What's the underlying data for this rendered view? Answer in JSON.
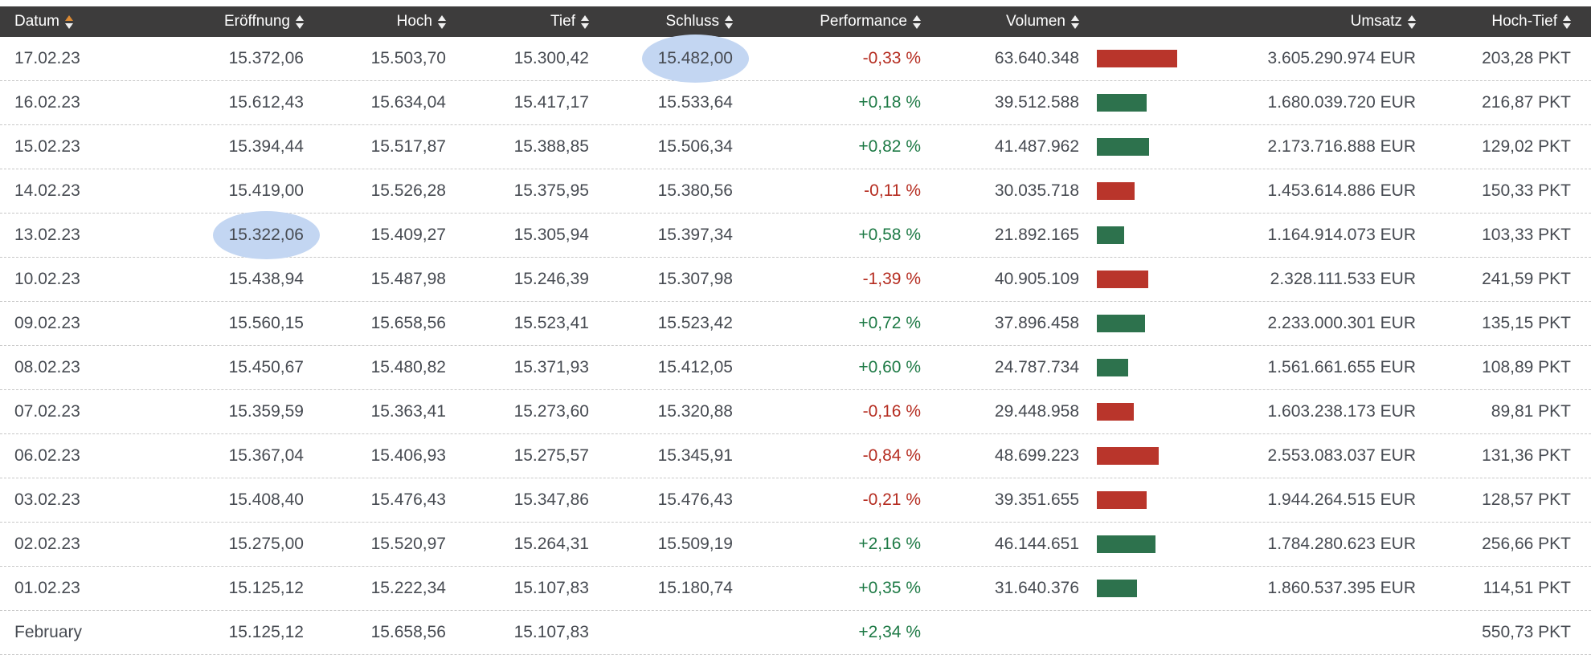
{
  "colors": {
    "header_bg": "#3d3c3c",
    "header_text": "#ffffff",
    "body_text": "#474b52",
    "positive": "#1e7a46",
    "negative": "#b52c20",
    "bar_positive": "#2d724d",
    "bar_negative": "#b9352b",
    "row_divider": "#c8c8c8",
    "highlight_ellipse": "#c3d6f2",
    "sort_active": "#dd8a33"
  },
  "table": {
    "sort": {
      "column": "datum",
      "active_arrow": "up",
      "icon": "up-down-triangles-icon"
    },
    "columns": [
      {
        "key": "datum",
        "label": "Datum"
      },
      {
        "key": "eroeffnung",
        "label": "Eröffnung"
      },
      {
        "key": "hoch",
        "label": "Hoch"
      },
      {
        "key": "tief",
        "label": "Tief"
      },
      {
        "key": "schluss",
        "label": "Schluss"
      },
      {
        "key": "performance",
        "label": "Performance"
      },
      {
        "key": "volumen",
        "label": "Volumen"
      },
      {
        "key": "umsatz",
        "label": "Umsatz"
      },
      {
        "key": "hoch_tief",
        "label": "Hoch-Tief"
      }
    ],
    "max_volume": 63640348,
    "rows": [
      {
        "datum": "17.02.23",
        "eroeffnung": "15.372,06",
        "hoch": "15.503,70",
        "tief": "15.300,42",
        "schluss": "15.482,00",
        "performance": "-0,33 %",
        "volumen": "63.640.348",
        "umsatz": "3.605.290.974 EUR",
        "hoch_tief": "203,28 PKT",
        "highlight": "schluss"
      },
      {
        "datum": "16.02.23",
        "eroeffnung": "15.612,43",
        "hoch": "15.634,04",
        "tief": "15.417,17",
        "schluss": "15.533,64",
        "performance": "+0,18 %",
        "volumen": "39.512.588",
        "umsatz": "1.680.039.720 EUR",
        "hoch_tief": "216,87 PKT"
      },
      {
        "datum": "15.02.23",
        "eroeffnung": "15.394,44",
        "hoch": "15.517,87",
        "tief": "15.388,85",
        "schluss": "15.506,34",
        "performance": "+0,82 %",
        "volumen": "41.487.962",
        "umsatz": "2.173.716.888 EUR",
        "hoch_tief": "129,02 PKT"
      },
      {
        "datum": "14.02.23",
        "eroeffnung": "15.419,00",
        "hoch": "15.526,28",
        "tief": "15.375,95",
        "schluss": "15.380,56",
        "performance": "-0,11 %",
        "volumen": "30.035.718",
        "umsatz": "1.453.614.886 EUR",
        "hoch_tief": "150,33 PKT"
      },
      {
        "datum": "13.02.23",
        "eroeffnung": "15.322,06",
        "hoch": "15.409,27",
        "tief": "15.305,94",
        "schluss": "15.397,34",
        "performance": "+0,58 %",
        "volumen": "21.892.165",
        "umsatz": "1.164.914.073 EUR",
        "hoch_tief": "103,33 PKT",
        "highlight": "eroeffnung"
      },
      {
        "datum": "10.02.23",
        "eroeffnung": "15.438,94",
        "hoch": "15.487,98",
        "tief": "15.246,39",
        "schluss": "15.307,98",
        "performance": "-1,39 %",
        "volumen": "40.905.109",
        "umsatz": "2.328.111.533 EUR",
        "hoch_tief": "241,59 PKT"
      },
      {
        "datum": "09.02.23",
        "eroeffnung": "15.560,15",
        "hoch": "15.658,56",
        "tief": "15.523,41",
        "schluss": "15.523,42",
        "performance": "+0,72 %",
        "volumen": "37.896.458",
        "umsatz": "2.233.000.301 EUR",
        "hoch_tief": "135,15 PKT"
      },
      {
        "datum": "08.02.23",
        "eroeffnung": "15.450,67",
        "hoch": "15.480,82",
        "tief": "15.371,93",
        "schluss": "15.412,05",
        "performance": "+0,60 %",
        "volumen": "24.787.734",
        "umsatz": "1.561.661.655 EUR",
        "hoch_tief": "108,89 PKT"
      },
      {
        "datum": "07.02.23",
        "eroeffnung": "15.359,59",
        "hoch": "15.363,41",
        "tief": "15.273,60",
        "schluss": "15.320,88",
        "performance": "-0,16 %",
        "volumen": "29.448.958",
        "umsatz": "1.603.238.173 EUR",
        "hoch_tief": "89,81 PKT"
      },
      {
        "datum": "06.02.23",
        "eroeffnung": "15.367,04",
        "hoch": "15.406,93",
        "tief": "15.275,57",
        "schluss": "15.345,91",
        "performance": "-0,84 %",
        "volumen": "48.699.223",
        "umsatz": "2.553.083.037 EUR",
        "hoch_tief": "131,36 PKT"
      },
      {
        "datum": "03.02.23",
        "eroeffnung": "15.408,40",
        "hoch": "15.476,43",
        "tief": "15.347,86",
        "schluss": "15.476,43",
        "performance": "-0,21 %",
        "volumen": "39.351.655",
        "umsatz": "1.944.264.515 EUR",
        "hoch_tief": "128,57 PKT"
      },
      {
        "datum": "02.02.23",
        "eroeffnung": "15.275,00",
        "hoch": "15.520,97",
        "tief": "15.264,31",
        "schluss": "15.509,19",
        "performance": "+2,16 %",
        "volumen": "46.144.651",
        "umsatz": "1.784.280.623 EUR",
        "hoch_tief": "256,66 PKT"
      },
      {
        "datum": "01.02.23",
        "eroeffnung": "15.125,12",
        "hoch": "15.222,34",
        "tief": "15.107,83",
        "schluss": "15.180,74",
        "performance": "+0,35 %",
        "volumen": "31.640.376",
        "umsatz": "1.860.537.395 EUR",
        "hoch_tief": "114,51 PKT"
      },
      {
        "datum": "February",
        "eroeffnung": "15.125,12",
        "hoch": "15.658,56",
        "tief": "15.107,83",
        "schluss": "",
        "performance": "+2,34 %",
        "volumen": "",
        "umsatz": "",
        "hoch_tief": "550,73 PKT",
        "summary": true
      }
    ]
  }
}
